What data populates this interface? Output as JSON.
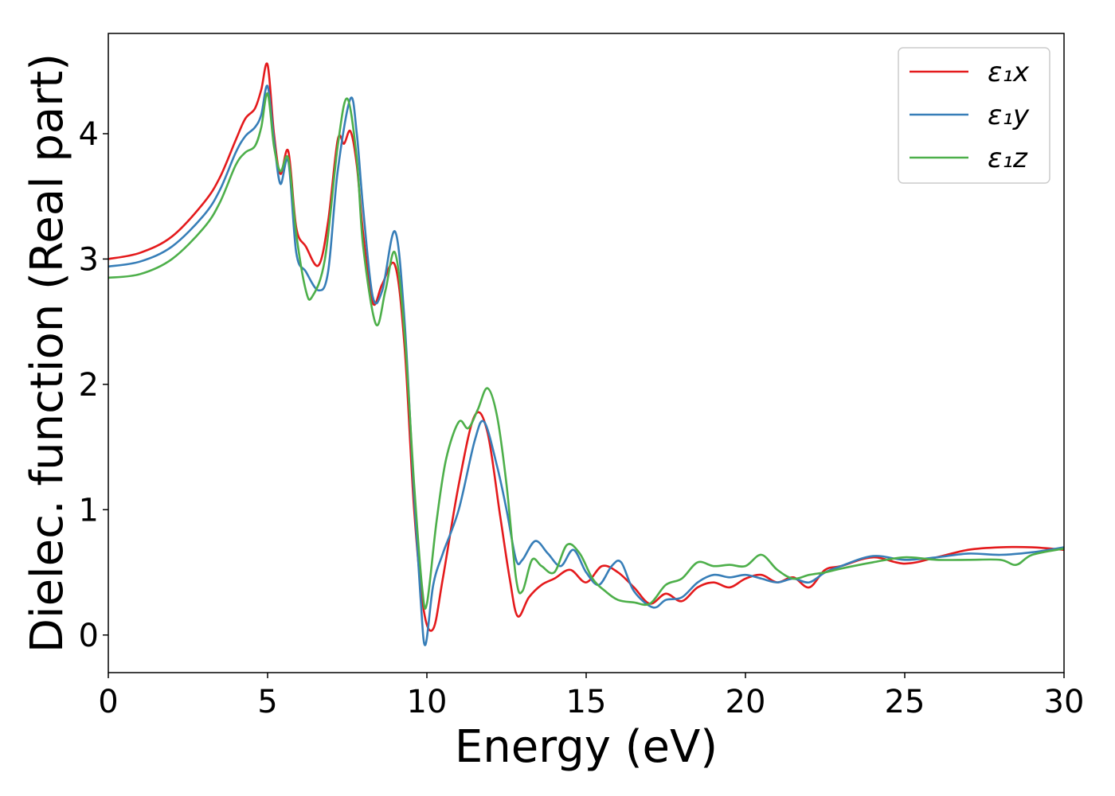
{
  "chart_data": {
    "type": "line",
    "title": "",
    "xlabel": "Energy (eV)",
    "ylabel": "Dielec. function (Real part)",
    "xlim": [
      0,
      30
    ],
    "ylim": [
      -0.3,
      4.8
    ],
    "xticks": [
      0,
      5,
      10,
      15,
      20,
      25,
      30
    ],
    "yticks": [
      0,
      1,
      2,
      3,
      4
    ],
    "grid": false,
    "legend_position": "top-right",
    "series": [
      {
        "name": "ε₁x",
        "color": "#e41a1c",
        "x": [
          0,
          1,
          2,
          3,
          3.5,
          4,
          4.3,
          4.6,
          4.8,
          5.0,
          5.2,
          5.4,
          5.65,
          5.9,
          6.2,
          6.6,
          6.9,
          7.2,
          7.4,
          7.6,
          7.8,
          8.0,
          8.3,
          8.6,
          9.0,
          9.3,
          9.6,
          9.9,
          10.2,
          10.5,
          11.0,
          11.5,
          11.9,
          12.3,
          12.6,
          12.85,
          13.2,
          13.6,
          14.0,
          14.5,
          15.0,
          15.5,
          16.0,
          16.5,
          17.0,
          17.5,
          18.0,
          18.5,
          19.0,
          19.5,
          20.0,
          20.5,
          21.0,
          21.5,
          22.0,
          22.5,
          23.0,
          24.0,
          25.0,
          26.0,
          27.0,
          28.0,
          29.0,
          30.0
        ],
        "y": [
          3.0,
          3.05,
          3.18,
          3.45,
          3.65,
          3.95,
          4.12,
          4.2,
          4.35,
          4.55,
          4.0,
          3.68,
          3.86,
          3.25,
          3.1,
          2.95,
          3.3,
          3.95,
          3.92,
          4.02,
          3.75,
          3.2,
          2.65,
          2.8,
          2.95,
          2.3,
          1.0,
          0.2,
          0.05,
          0.45,
          1.2,
          1.75,
          1.62,
          0.95,
          0.45,
          0.15,
          0.3,
          0.4,
          0.45,
          0.52,
          0.42,
          0.55,
          0.5,
          0.38,
          0.25,
          0.33,
          0.27,
          0.38,
          0.42,
          0.38,
          0.45,
          0.48,
          0.42,
          0.46,
          0.38,
          0.52,
          0.55,
          0.62,
          0.57,
          0.62,
          0.68,
          0.7,
          0.7,
          0.68
        ]
      },
      {
        "name": "ε₁y",
        "color": "#377eb8",
        "x": [
          0,
          1,
          2,
          3,
          3.5,
          4,
          4.3,
          4.6,
          4.8,
          5.0,
          5.2,
          5.4,
          5.65,
          5.9,
          6.2,
          6.6,
          6.9,
          7.2,
          7.6,
          7.8,
          8.0,
          8.3,
          8.6,
          9.0,
          9.3,
          9.6,
          9.8,
          9.95,
          10.2,
          10.5,
          11.0,
          11.5,
          11.8,
          12.2,
          12.5,
          12.8,
          13.0,
          13.4,
          13.8,
          14.2,
          14.6,
          15.0,
          15.4,
          15.8,
          16.1,
          16.5,
          17.1,
          17.5,
          18.0,
          18.5,
          19.0,
          19.5,
          20.0,
          20.5,
          21.0,
          21.5,
          22.0,
          22.5,
          23.0,
          24.0,
          25.0,
          26.0,
          27.0,
          28.0,
          29.0,
          30.0
        ],
        "y": [
          2.94,
          2.98,
          3.1,
          3.35,
          3.55,
          3.85,
          3.98,
          4.05,
          4.15,
          4.38,
          3.95,
          3.6,
          3.78,
          3.05,
          2.9,
          2.75,
          2.9,
          3.7,
          4.28,
          4.0,
          3.4,
          2.7,
          2.75,
          3.22,
          2.5,
          1.1,
          0.3,
          -0.08,
          0.4,
          0.65,
          1.0,
          1.55,
          1.7,
          1.35,
          1.0,
          0.6,
          0.6,
          0.75,
          0.65,
          0.55,
          0.68,
          0.5,
          0.4,
          0.55,
          0.58,
          0.35,
          0.22,
          0.28,
          0.3,
          0.42,
          0.48,
          0.46,
          0.48,
          0.45,
          0.42,
          0.45,
          0.42,
          0.5,
          0.55,
          0.63,
          0.6,
          0.62,
          0.65,
          0.64,
          0.66,
          0.7
        ]
      },
      {
        "name": "ε₁z",
        "color": "#4daf4a",
        "x": [
          0,
          1,
          2,
          3,
          3.5,
          4,
          4.3,
          4.6,
          4.8,
          5.0,
          5.2,
          5.4,
          5.65,
          5.9,
          6.2,
          6.4,
          6.8,
          7.2,
          7.5,
          7.8,
          8.0,
          8.4,
          8.7,
          9.0,
          9.3,
          9.6,
          9.85,
          10.0,
          10.3,
          10.6,
          11.0,
          11.3,
          11.6,
          11.9,
          12.2,
          12.5,
          12.8,
          13.0,
          13.3,
          13.6,
          14.0,
          14.4,
          14.8,
          15.2,
          15.6,
          16.0,
          16.5,
          17.0,
          17.5,
          18.0,
          18.5,
          19.0,
          19.5,
          20.0,
          20.5,
          21.0,
          21.5,
          22.0,
          22.5,
          23.0,
          24.0,
          25.0,
          26.0,
          27.0,
          28.0,
          28.5,
          29.0,
          30.0
        ],
        "y": [
          2.85,
          2.88,
          3.0,
          3.25,
          3.45,
          3.75,
          3.85,
          3.9,
          4.05,
          4.32,
          3.9,
          3.7,
          3.8,
          3.2,
          2.75,
          2.7,
          3.0,
          3.9,
          4.28,
          3.8,
          3.1,
          2.48,
          2.75,
          3.05,
          2.4,
          1.2,
          0.38,
          0.25,
          0.9,
          1.4,
          1.7,
          1.65,
          1.8,
          1.97,
          1.75,
          1.2,
          0.45,
          0.35,
          0.6,
          0.55,
          0.5,
          0.72,
          0.65,
          0.45,
          0.35,
          0.28,
          0.26,
          0.25,
          0.4,
          0.45,
          0.58,
          0.55,
          0.56,
          0.55,
          0.64,
          0.52,
          0.45,
          0.48,
          0.5,
          0.53,
          0.58,
          0.62,
          0.6,
          0.6,
          0.6,
          0.56,
          0.64,
          0.69
        ]
      }
    ]
  }
}
